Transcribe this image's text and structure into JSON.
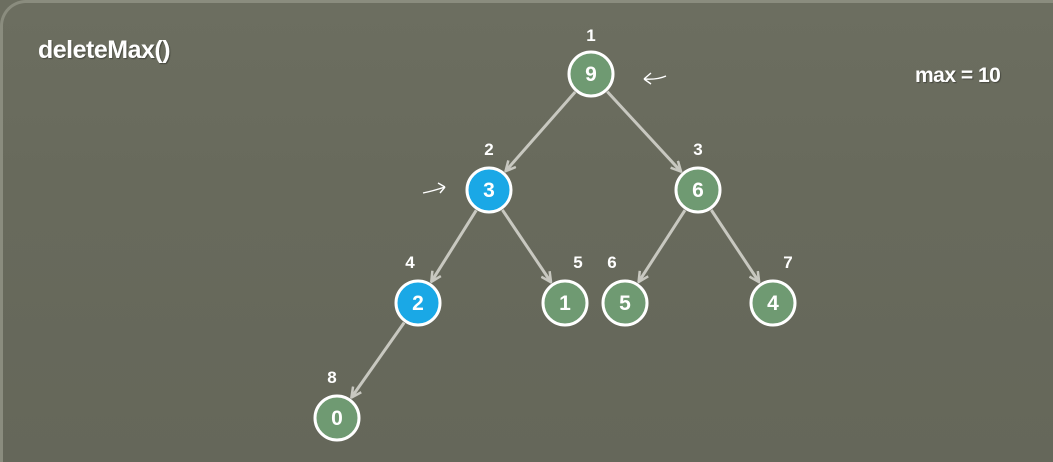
{
  "title": "deleteMax()",
  "max_label": "max = 10",
  "colors": {
    "background": "#686a5c",
    "node_default": "#6f9a72",
    "node_active": "#1aa8e6",
    "edge": "#c8c8c0",
    "text": "#ffffff"
  },
  "heap": {
    "nodes": [
      {
        "index": "1",
        "value": "9",
        "state": "default"
      },
      {
        "index": "2",
        "value": "3",
        "state": "active"
      },
      {
        "index": "3",
        "value": "6",
        "state": "default"
      },
      {
        "index": "4",
        "value": "2",
        "state": "active"
      },
      {
        "index": "5",
        "value": "1",
        "state": "default"
      },
      {
        "index": "6",
        "value": "5",
        "state": "default"
      },
      {
        "index": "7",
        "value": "4",
        "state": "default"
      },
      {
        "index": "8",
        "value": "0",
        "state": "default"
      }
    ],
    "edges": [
      [
        "1",
        "2"
      ],
      [
        "1",
        "3"
      ],
      [
        "2",
        "4"
      ],
      [
        "2",
        "5"
      ],
      [
        "3",
        "6"
      ],
      [
        "3",
        "7"
      ],
      [
        "4",
        "8"
      ]
    ]
  },
  "annotations": [
    {
      "name": "pointer-arrow-root",
      "direction": "left",
      "target": "1"
    },
    {
      "name": "pointer-arrow-node2",
      "direction": "right",
      "target": "2"
    }
  ]
}
